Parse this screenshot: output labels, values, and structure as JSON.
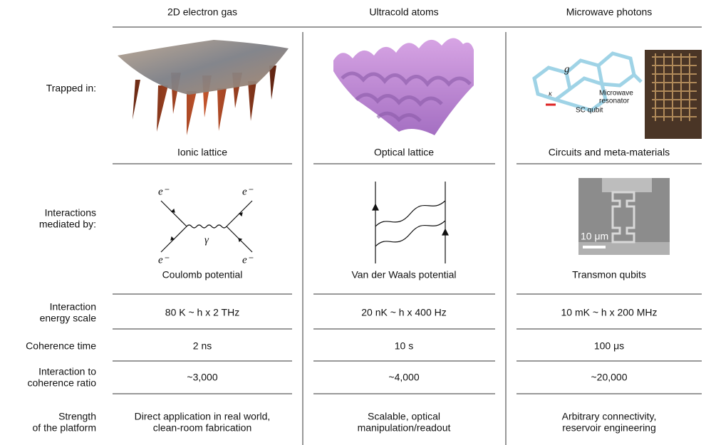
{
  "header": {
    "columns": [
      "2D electron gas",
      "Ultracold atoms",
      "Microwave photons"
    ]
  },
  "rows": [
    {
      "label": [
        "Trapped in:"
      ],
      "cells": [
        "Ionic lattice",
        "Optical lattice",
        "Circuits and meta-materials"
      ]
    },
    {
      "label": [
        "Interactions",
        "mediated by:"
      ],
      "cells": [
        "Coulomb potential",
        "Van der Waals potential",
        "Transmon qubits"
      ]
    },
    {
      "label": [
        "Interaction",
        "energy scale"
      ],
      "cells": [
        "80 K ~ h x 2 THz",
        "20 nK ~ h x 400 Hz",
        "10 mK ~ h x 200 MHz"
      ]
    },
    {
      "label": [
        "Coherence time"
      ],
      "cells": [
        "2 ns",
        "10 s",
        "100 μs"
      ]
    },
    {
      "label": [
        "Interaction to",
        "coherence ratio"
      ],
      "cells": [
        "~3,000",
        "~4,000",
        "~20,000"
      ]
    },
    {
      "label": [
        "Strength",
        "of the platform"
      ],
      "cells": [
        [
          "Direct application in real world,",
          "clean-room fabrication"
        ],
        [
          "Scalable, optical",
          "manipulation/readout"
        ],
        [
          "Arbitrary connectivity,",
          "reservoir engineering"
        ]
      ]
    }
  ],
  "figures": {
    "feynman": {
      "fermion": "e⁻",
      "boson": "γ"
    },
    "circuit": {
      "coupling": "g",
      "decay": "κ",
      "resonator": [
        "Microwave",
        "resonator"
      ],
      "qubit": "SC qubit"
    },
    "micrograph": {
      "scale": "10 μm"
    }
  }
}
